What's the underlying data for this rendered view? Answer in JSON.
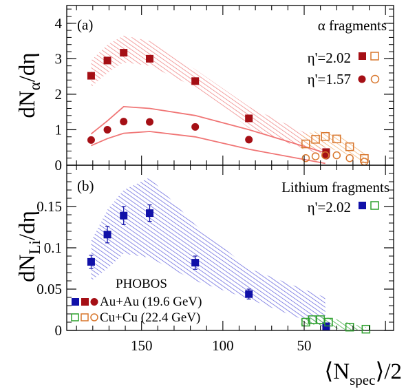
{
  "chart_data": [
    {
      "panel_label": "(a)",
      "type": "scatter",
      "ylabel": {
        "base": "dN",
        "sub": "α",
        "tail": "/dη"
      },
      "annotation": "α fragments",
      "x_axis_reversed": true,
      "xlim": [
        -5,
        196
      ],
      "ylim": [
        0,
        4.5
      ],
      "ytick_labels": [
        "0",
        "1",
        "2",
        "3",
        "4"
      ],
      "legend_entries": [
        {
          "label": "η'=2.02",
          "marker": "square"
        },
        {
          "label": "η'=1.57",
          "marker": "circle"
        }
      ],
      "series": [
        {
          "system": "Au+Au",
          "eta": "2.02",
          "marker": "square",
          "filled": true,
          "color": "#a50f15",
          "x": [
            181,
            171,
            161,
            145,
            117,
            84,
            36.5
          ],
          "y": [
            2.52,
            2.95,
            3.17,
            3.0,
            2.37,
            1.32,
            0.37
          ]
        },
        {
          "system": "Au+Au",
          "eta": "1.57",
          "marker": "circle",
          "filled": true,
          "color": "#a50f15",
          "x": [
            181,
            171,
            161,
            145,
            117,
            84,
            36.5
          ],
          "y": [
            0.71,
            1.0,
            1.23,
            1.22,
            1.08,
            0.72,
            0.27
          ]
        },
        {
          "system": "Cu+Cu",
          "eta": "2.02",
          "marker": "square",
          "filled": false,
          "color": "#d8762c",
          "x": [
            49,
            43,
            37,
            30,
            22,
            13
          ],
          "y": [
            0.6,
            0.73,
            0.81,
            0.74,
            0.52,
            0.19
          ]
        },
        {
          "system": "Cu+Cu",
          "eta": "1.57",
          "marker": "circle",
          "filled": false,
          "color": "#d8762c",
          "x": [
            49,
            43,
            37,
            30,
            22,
            13
          ],
          "y": [
            0.2,
            0.25,
            0.28,
            0.28,
            0.2,
            0.1
          ]
        }
      ],
      "bands": [
        {
          "kind": "hatched",
          "color": "#f08a8a",
          "x": [
            181,
            171,
            161,
            145,
            117,
            84,
            37
          ],
          "low": [
            2.2,
            2.6,
            2.9,
            2.8,
            2.2,
            1.05,
            0.22
          ],
          "high": [
            2.95,
            3.4,
            3.65,
            3.5,
            2.7,
            1.65,
            0.65
          ]
        },
        {
          "kind": "hatched",
          "color": "#f4b478",
          "x": [
            52,
            44,
            37,
            29,
            21,
            12
          ],
          "low": [
            0.45,
            0.5,
            0.5,
            0.4,
            0.25,
            0.0
          ],
          "high": [
            0.85,
            0.95,
            0.95,
            0.85,
            0.6,
            0.3
          ]
        },
        {
          "kind": "lines",
          "color": "#f07575",
          "x": [
            181,
            171,
            161,
            145,
            117,
            84,
            37
          ],
          "low": [
            0.55,
            0.75,
            0.9,
            0.95,
            0.8,
            0.45,
            0.05
          ],
          "high": [
            0.88,
            1.25,
            1.65,
            1.6,
            1.4,
            1.0,
            0.35
          ]
        }
      ]
    },
    {
      "panel_label": "(b)",
      "type": "scatter",
      "ylabel": {
        "base": "dN",
        "sub": "Li",
        "tail": "/dη"
      },
      "annotation": "Lithium fragments",
      "x_axis_reversed": true,
      "xlim": [
        -5,
        196
      ],
      "ylim": [
        0,
        0.2
      ],
      "ytick_labels": [
        "0",
        "0.05",
        "0.1",
        "0.15"
      ],
      "xtick_labels": [
        "150",
        "100",
        "50"
      ],
      "xtick_values": [
        150,
        100,
        50
      ],
      "xlabel": {
        "pre": "⟨N",
        "sub": "spec",
        "post": "⟩/2"
      },
      "legend_entries": [
        {
          "label": "η'=2.02",
          "marker": "square"
        }
      ],
      "series": [
        {
          "system": "Au+Au",
          "eta": "2.02",
          "marker": "square",
          "filled": true,
          "color": "#1010a8",
          "x": [
            181,
            171,
            161,
            145,
            117,
            84,
            36.5
          ],
          "y": [
            0.083,
            0.116,
            0.139,
            0.142,
            0.082,
            0.044,
            0.005
          ],
          "err": [
            0.008,
            0.01,
            0.011,
            0.01,
            0.008,
            0.006,
            0.003
          ]
        },
        {
          "system": "Cu+Cu",
          "eta": "2.02",
          "marker": "square",
          "filled": false,
          "color": "#2ca02c",
          "x": [
            49,
            45,
            40,
            35,
            22,
            12
          ],
          "y": [
            0.01,
            0.013,
            0.013,
            0.01,
            0.004,
            0.0015
          ]
        }
      ],
      "bands": [
        {
          "kind": "hatched",
          "color": "#6f6fe0",
          "x": [
            181,
            171,
            161,
            145,
            117,
            84,
            37
          ],
          "low": [
            0.06,
            0.075,
            0.093,
            0.088,
            0.06,
            0.038,
            0.003
          ],
          "high": [
            0.108,
            0.146,
            0.17,
            0.185,
            0.128,
            0.075,
            0.04
          ]
        },
        {
          "kind": "hatched",
          "color": "#49b049",
          "x": [
            52,
            44,
            37,
            29,
            21,
            12
          ],
          "low": [
            0.006,
            0.007,
            0.005,
            0.002,
            0.0,
            0.0
          ],
          "high": [
            0.014,
            0.016,
            0.016,
            0.013,
            0.008,
            0.004
          ]
        }
      ]
    }
  ],
  "legend": {
    "title": "PHOBOS",
    "rows": [
      {
        "label": "Au+Au (19.6 GeV)",
        "filled": true,
        "markers": [
          {
            "shape": "square",
            "color": "#1010a8"
          },
          {
            "shape": "square",
            "color": "#a50f15"
          },
          {
            "shape": "circle",
            "color": "#a50f15"
          }
        ]
      },
      {
        "label": "Cu+Cu (22.4 GeV)",
        "filled": false,
        "markers": [
          {
            "shape": "square",
            "color": "#2ca02c"
          },
          {
            "shape": "square",
            "color": "#d8762c"
          },
          {
            "shape": "circle",
            "color": "#d8762c"
          }
        ]
      }
    ]
  }
}
